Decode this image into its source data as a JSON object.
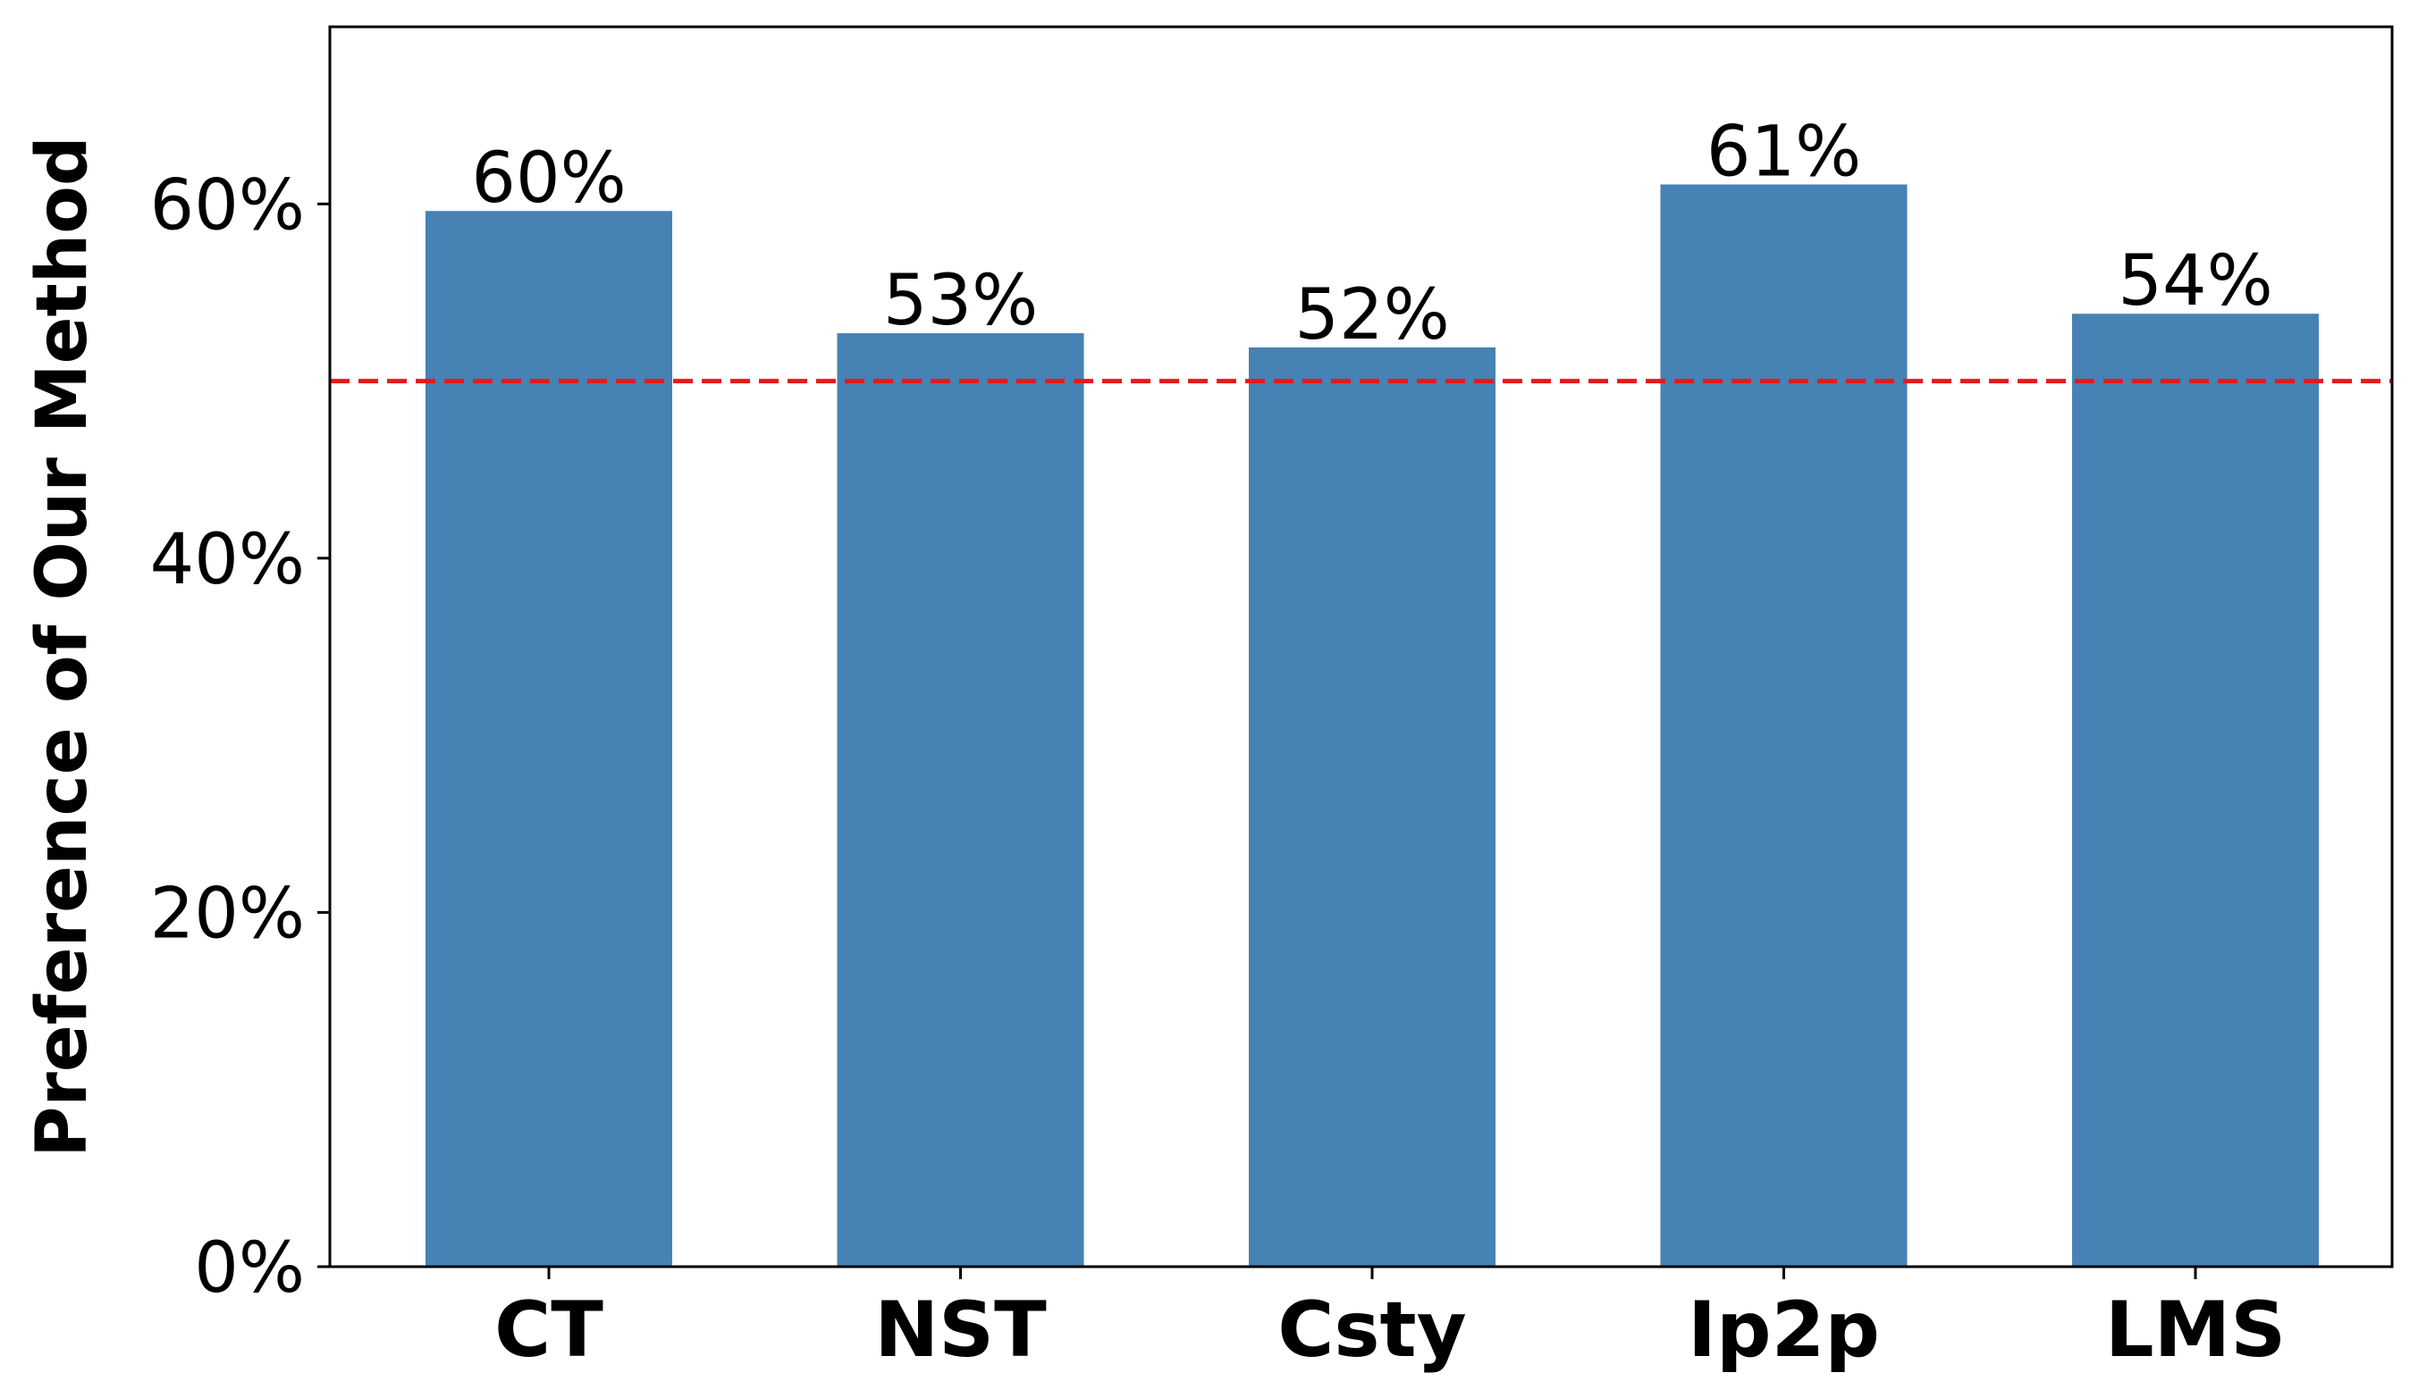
{
  "chart_data": {
    "type": "bar",
    "categories": [
      "CT",
      "NST",
      "Csty",
      "Ip2p",
      "LMS"
    ],
    "values": [
      59.6,
      52.7,
      51.9,
      61.1,
      53.8
    ],
    "value_labels": [
      "60%",
      "53%",
      "52%",
      "61%",
      "54%"
    ],
    "title": "",
    "xlabel": "",
    "ylabel": "Preference of Our Method",
    "ylim": [
      0,
      70
    ],
    "yticks": [
      0,
      20,
      40,
      60
    ],
    "ytick_labels": [
      "0%",
      "20%",
      "40%",
      "60%"
    ],
    "reference_line": {
      "value": 50,
      "style": "dashed"
    },
    "grid": false,
    "legend": "none",
    "colors": {
      "bar": "#4682b4",
      "reference_line": "#e31a1c",
      "axis": "#000000"
    }
  }
}
